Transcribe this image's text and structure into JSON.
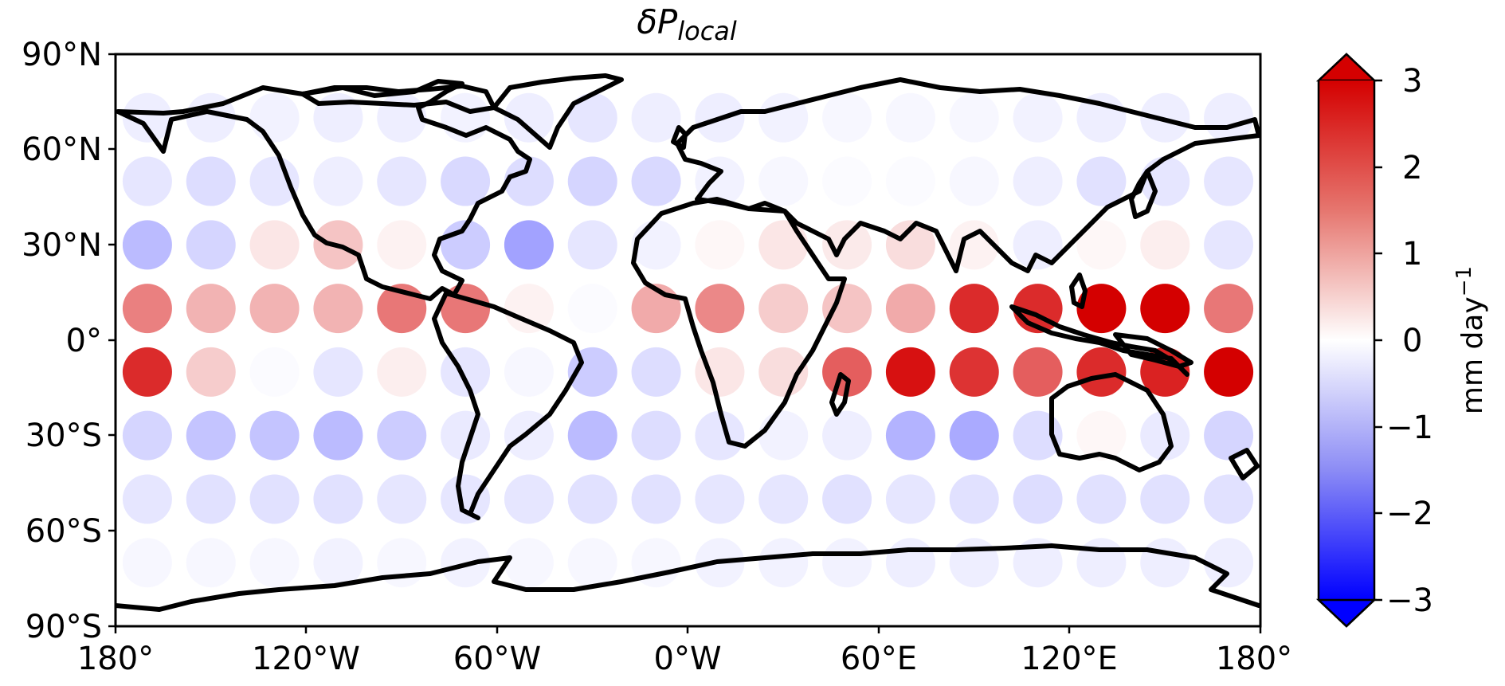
{
  "title": "δP",
  "title_subscript": "local",
  "x_ticks": [
    "180°",
    "120°W",
    "60°W",
    "0°W",
    "60°E",
    "120°E",
    "180°"
  ],
  "y_ticks": [
    "90°N",
    "60°N",
    "30°N",
    "0°",
    "30°S",
    "60°S",
    "90°S"
  ],
  "colorbar": {
    "label": "mm day",
    "label_superscript": "−1",
    "ticks": [
      "3",
      "2",
      "1",
      "0",
      "−1",
      "−2",
      "−3"
    ],
    "colormap": "bwr",
    "range": [
      -3,
      3
    ],
    "extend": "both",
    "colors": {
      "max": "#d40000",
      "mid": "#ffffff",
      "min": "#0000ff"
    }
  },
  "map": {
    "projection": "PlateCarree",
    "coastlines": "black",
    "markers": "filled circles at grid cell centres"
  },
  "chart_data": {
    "type": "heatmap",
    "x_values_lon": [
      -170,
      -150,
      -130,
      -110,
      -90,
      -70,
      -50,
      -30,
      -10,
      10,
      30,
      50,
      70,
      90,
      110,
      130,
      150,
      170
    ],
    "y_values_lat": [
      70,
      50,
      30,
      10,
      -10,
      -30,
      -50,
      -70
    ],
    "values": [
      [
        -0.2,
        -0.2,
        -0.15,
        -0.2,
        -0.2,
        -0.15,
        -0.2,
        -0.3,
        -0.2,
        -0.2,
        -0.15,
        -0.1,
        -0.1,
        -0.1,
        -0.15,
        -0.2,
        -0.2,
        -0.2
      ],
      [
        -0.3,
        -0.4,
        -0.3,
        -0.2,
        -0.3,
        -0.45,
        -0.4,
        -0.5,
        -0.45,
        -0.15,
        -0.1,
        -0.05,
        -0.05,
        -0.1,
        -0.2,
        -0.35,
        -0.3,
        -0.3
      ],
      [
        -0.8,
        -0.5,
        0.3,
        0.7,
        0.15,
        -0.6,
        -1.1,
        -0.3,
        -0.15,
        0.1,
        0.3,
        0.25,
        0.4,
        0.15,
        -0.2,
        0.1,
        0.2,
        -0.3
      ],
      [
        1.5,
        0.9,
        0.9,
        0.9,
        1.6,
        1.6,
        0.15,
        -0.05,
        1.0,
        1.4,
        0.6,
        0.7,
        1.0,
        2.5,
        2.5,
        3.2,
        3.2,
        1.6
      ],
      [
        2.5,
        0.6,
        -0.05,
        -0.3,
        0.2,
        -0.3,
        -0.1,
        -0.6,
        -0.4,
        0.3,
        0.4,
        1.9,
        2.8,
        2.4,
        1.9,
        2.5,
        2.6,
        3.1
      ],
      [
        -0.5,
        -0.7,
        -0.7,
        -0.8,
        -0.6,
        -0.25,
        -0.2,
        -0.8,
        -0.4,
        -0.3,
        -0.15,
        -0.2,
        -0.9,
        -1.0,
        -0.4,
        0.1,
        -0.25,
        -0.5
      ],
      [
        -0.3,
        -0.35,
        -0.35,
        -0.35,
        -0.3,
        -0.3,
        -0.3,
        -0.35,
        -0.35,
        -0.3,
        -0.3,
        -0.35,
        -0.3,
        -0.35,
        -0.4,
        -0.35,
        -0.35,
        -0.35
      ],
      [
        -0.1,
        -0.1,
        -0.1,
        -0.15,
        -0.1,
        -0.15,
        -0.1,
        -0.1,
        -0.1,
        -0.15,
        -0.15,
        -0.15,
        -0.2,
        -0.2,
        -0.2,
        -0.2,
        -0.2,
        -0.2
      ]
    ],
    "xlabel": "",
    "ylabel": "",
    "xlim": [
      -180,
      180
    ],
    "ylim": [
      -90,
      90
    ]
  }
}
